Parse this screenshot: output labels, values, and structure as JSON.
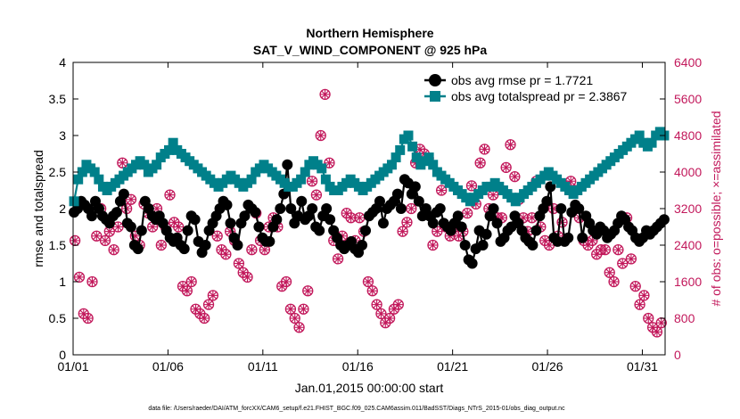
{
  "chart_data": {
    "type": "line",
    "title": "Northern Hemisphere",
    "subtitle": "SAT_V_WIND_COMPONENT @ 925 hPa",
    "xlabel": "Jan.01,2015 00:00:00 start",
    "ylabel": "rmse and totalspread",
    "y2label": "# of obs: o=possible; ×=assimilated",
    "xlim": [
      1,
      32.2
    ],
    "ylim": [
      0,
      4
    ],
    "y2lim": [
      0,
      6400
    ],
    "x_ticks": [
      1,
      6,
      11,
      16,
      21,
      26,
      31
    ],
    "x_tick_labels": [
      "01/01",
      "01/06",
      "01/11",
      "01/16",
      "01/21",
      "01/26",
      "01/31"
    ],
    "y_ticks": [
      0,
      0.5,
      1,
      1.5,
      2,
      2.5,
      3,
      3.5,
      4
    ],
    "y_tick_labels": [
      "0",
      "0.5",
      "1",
      "1.5",
      "2",
      "2.5",
      "3",
      "3.5",
      "4"
    ],
    "y2_ticks": [
      0,
      800,
      1600,
      2400,
      3200,
      4000,
      4800,
      5600,
      6400
    ],
    "y2_tick_labels": [
      "0",
      "800",
      "1600",
      "2400",
      "3200",
      "4000",
      "4800",
      "5600",
      "6400"
    ],
    "legend_location": "top-right",
    "series": [
      {
        "name": "obs avg rmse pr = 1.7721",
        "axis": "left",
        "color": "#000000",
        "marker": "circle",
        "values": [
          1.95,
          2.0,
          2.1,
          2.05,
          2.0,
          1.9,
          2.1,
          2.0,
          1.9,
          1.85,
          1.8,
          1.9,
          1.95,
          2.1,
          2.2,
          1.8,
          1.75,
          1.5,
          1.45,
          1.7,
          2.1,
          2.0,
          1.9,
          1.85,
          1.9,
          1.8,
          1.7,
          1.6,
          1.55,
          1.6,
          1.5,
          1.45,
          1.7,
          1.9,
          1.85,
          1.55,
          1.4,
          1.5,
          1.7,
          1.8,
          1.9,
          2.0,
          2.1,
          2.05,
          1.8,
          1.6,
          1.5,
          1.8,
          1.9,
          2.05,
          2.0,
          1.95,
          1.75,
          1.6,
          1.55,
          1.55,
          1.75,
          1.85,
          2.0,
          2.2,
          2.6,
          2.0,
          1.8,
          1.9,
          2.1,
          1.85,
          1.9,
          2.0,
          1.75,
          1.7,
          1.9,
          2.0,
          1.85,
          1.7,
          1.6,
          1.5,
          1.45,
          1.5,
          1.55,
          1.45,
          1.4,
          1.5,
          1.7,
          1.9,
          1.95,
          2.0,
          2.1,
          1.8,
          2.0,
          2.05,
          2.1,
          2.2,
          2.0,
          2.4,
          2.35,
          2.2,
          2.3,
          2.1,
          1.9,
          2.0,
          1.9,
          1.8,
          1.95,
          2.0,
          1.8,
          1.75,
          1.7,
          1.8,
          1.9,
          1.75,
          1.5,
          1.3,
          1.25,
          1.45,
          1.7,
          1.5,
          1.65,
          1.9,
          2.0,
          1.8,
          1.55,
          1.6,
          1.7,
          1.75,
          1.9,
          1.8,
          1.7,
          1.6,
          1.55,
          1.5,
          1.7,
          1.9,
          2.0,
          2.1,
          2.3,
          1.6,
          1.55,
          2.0,
          1.55,
          1.6,
          1.95,
          2.05,
          2.0,
          1.6,
          1.9,
          1.8,
          1.7,
          1.65,
          1.75,
          1.7,
          1.6,
          1.65,
          1.7,
          1.8,
          1.9,
          1.85,
          1.75,
          1.7,
          1.6,
          1.55,
          1.6,
          1.7,
          1.65,
          1.7,
          1.75,
          1.8,
          1.85
        ]
      },
      {
        "name": "obs avg totalspread pr = 2.3867",
        "axis": "left",
        "color": "#00808a",
        "marker": "square",
        "values": [
          2.1,
          2.4,
          2.5,
          2.6,
          2.55,
          2.5,
          2.4,
          2.3,
          2.25,
          2.3,
          2.35,
          2.4,
          2.45,
          2.5,
          2.55,
          2.6,
          2.65,
          2.6,
          2.5,
          2.55,
          2.6,
          2.7,
          2.75,
          2.8,
          2.9,
          2.8,
          2.75,
          2.7,
          2.65,
          2.6,
          2.55,
          2.5,
          2.45,
          2.4,
          2.35,
          2.3,
          2.35,
          2.4,
          2.45,
          2.4,
          2.35,
          2.3,
          2.35,
          2.4,
          2.5,
          2.55,
          2.6,
          2.55,
          2.5,
          2.45,
          2.4,
          2.35,
          2.3,
          2.3,
          2.35,
          2.4,
          2.5,
          2.6,
          2.65,
          2.6,
          2.55,
          2.4,
          2.3,
          2.25,
          2.25,
          2.3,
          2.35,
          2.4,
          2.35,
          2.3,
          2.25,
          2.3,
          2.35,
          2.4,
          2.45,
          2.5,
          2.55,
          2.6,
          2.7,
          2.8,
          2.95,
          3.0,
          2.85,
          2.7,
          2.6,
          2.65,
          2.7,
          2.6,
          2.5,
          2.45,
          2.4,
          2.35,
          2.3,
          2.25,
          2.2,
          2.15,
          2.1,
          2.15,
          2.2,
          2.25,
          2.3,
          2.3,
          2.35,
          2.3,
          2.25,
          2.2,
          2.15,
          2.1,
          2.15,
          2.2,
          2.25,
          2.3,
          2.35,
          2.4,
          2.45,
          2.5,
          2.45,
          2.4,
          2.35,
          2.3,
          2.25,
          2.2,
          2.25,
          2.3,
          2.35,
          2.4,
          2.45,
          2.5,
          2.55,
          2.6,
          2.65,
          2.7,
          2.75,
          2.8,
          2.85,
          2.9,
          2.95,
          3.0,
          2.9,
          2.85,
          2.9,
          3.0,
          3.05,
          3.0
        ]
      }
    ],
    "obs_possible": [
      2500,
      1700,
      900,
      800,
      1600,
      2600,
      3200,
      2500,
      2700,
      2300,
      2800,
      4200,
      3200,
      3400,
      2600,
      2400,
      3300,
      3100,
      2800,
      3200,
      2400,
      2800,
      3500,
      2900,
      2800,
      1500,
      1400,
      1600,
      1000,
      900,
      800,
      1100,
      1300,
      2600,
      2300,
      2200,
      2700,
      2500,
      2000,
      1800,
      1700,
      2300,
      3100,
      2500,
      2300,
      2800,
      3000,
      2800,
      1500,
      1600,
      1000,
      800,
      600,
      1000,
      1400,
      3800,
      3500,
      4800,
      5700,
      4200,
      2500,
      2100,
      2600,
      3100,
      3000,
      2500,
      3000,
      2700,
      1600,
      1400,
      1100,
      900,
      700,
      800,
      1000,
      1100,
      2700,
      2900,
      3200,
      4200,
      4500,
      4400,
      4300,
      2400,
      2700,
      3600,
      2800,
      2600,
      2800,
      2600,
      2700,
      3100,
      3700,
      3300,
      4200,
      4500,
      3200,
      3500,
      3000,
      3000,
      4100,
      4600,
      3900,
      3400,
      3000,
      2700,
      3000,
      3800,
      2800,
      2500,
      2400,
      3200,
      2600,
      2900,
      3700,
      3800,
      3600,
      3000,
      2500,
      2400,
      2500,
      2200,
      2300,
      2300,
      1800,
      1600,
      2300,
      2000,
      3000,
      2100,
      1500,
      1100,
      1300,
      800,
      600,
      500,
      700
    ]
  },
  "footer": "data file: /Users/raeder/DAI/ATM_forcXX/CAM6_setup/f.e21.FHIST_BGC.f09_025.CAM6assim.011/BadSST/Diags_NTrS_2015-01/obs_diag_output.nc"
}
